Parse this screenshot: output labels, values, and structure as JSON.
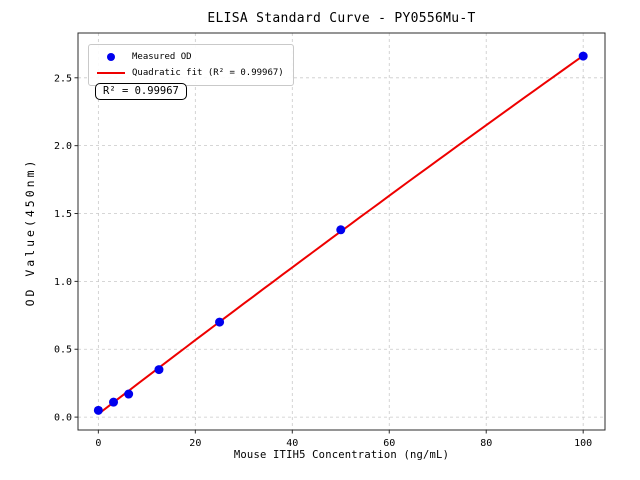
{
  "chart_data": {
    "type": "scatter",
    "title": "ELISA Standard Curve - PY0556Mu-T",
    "xlabel": "Mouse ITIH5 Concentration (ng/mL)",
    "ylabel": "OD Value(450nm)",
    "x": [
      0,
      3.125,
      6.25,
      12.5,
      25,
      50,
      100
    ],
    "y": [
      0.05,
      0.11,
      0.17,
      0.35,
      0.7,
      1.38,
      2.66
    ],
    "series": [
      {
        "name": "Measured OD",
        "kind": "scatter",
        "color": "#0000ee",
        "x": [
          0,
          3.125,
          6.25,
          12.5,
          25,
          50,
          100
        ],
        "y": [
          0.05,
          0.11,
          0.17,
          0.35,
          0.7,
          1.38,
          2.66
        ]
      },
      {
        "name": "Quadratic fit (R² = 0.99967)",
        "kind": "line",
        "color": "#ee0000",
        "fit_coefficients": {
          "a": 0.023,
          "b": 0.0274,
          "c": -1e-05
        },
        "x_range": [
          0,
          100
        ]
      }
    ],
    "r_squared": 0.99967,
    "annotation": "R² = 0.99967",
    "legend": {
      "position": "upper left",
      "entries": [
        "Measured OD",
        "Quadratic fit (R² = 0.99967)"
      ]
    },
    "xticks": [
      0,
      20,
      40,
      60,
      80,
      100
    ],
    "xtick_labels": [
      "0",
      "20",
      "40",
      "60",
      "80",
      "100"
    ],
    "yticks": [
      0,
      0.5,
      1.0,
      1.5,
      2.0,
      2.5
    ],
    "ytick_labels": [
      "0.0",
      "0.5",
      "1.0",
      "1.5",
      "2.0",
      "2.5"
    ],
    "xlim": [
      -4.2,
      104.5
    ],
    "ylim": [
      -0.095,
      2.83
    ],
    "grid": true,
    "colors": {
      "marker": "#0000ee",
      "fit_line": "#ee0000",
      "grid": "#c9c9c9",
      "spine": "#2b2b2b",
      "text": "#000000"
    }
  }
}
